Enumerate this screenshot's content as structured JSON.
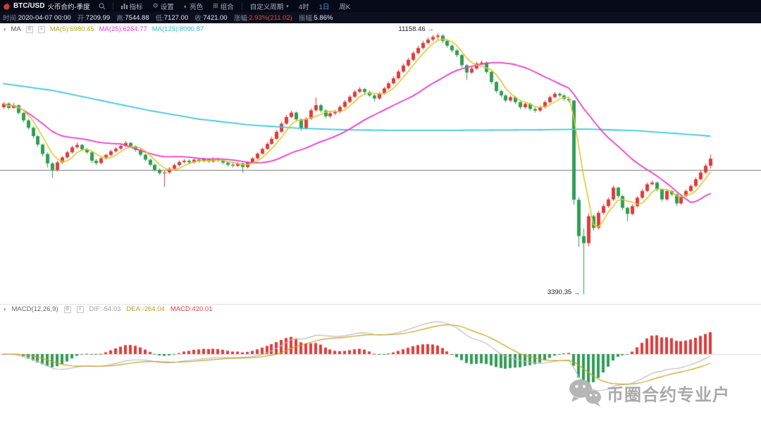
{
  "toolbar": {
    "symbol": "BTC/USD",
    "contract": "火币合约-季度",
    "items": [
      {
        "label": "指标",
        "icon": "indicator-chart-icon"
      },
      {
        "label": "设置",
        "icon": "gear-icon"
      },
      {
        "label": "亮色",
        "icon": "theme-icon"
      },
      {
        "label": "组合",
        "icon": "layout-icon"
      },
      {
        "label": "自定义周期",
        "icon_after": "chevron-down-icon"
      },
      {
        "label": "4时"
      },
      {
        "label": "1日",
        "active": true
      },
      {
        "label": "周K"
      }
    ]
  },
  "info_bar": {
    "time": {
      "label": "时间:",
      "value": "2020-04-07 00:00"
    },
    "open": {
      "label": "开:",
      "value": "7209.99"
    },
    "high": {
      "label": "高:",
      "value": "7544.88"
    },
    "low": {
      "label": "低:",
      "value": "7127.00"
    },
    "close": {
      "label": "收:",
      "value": "7421.00"
    },
    "change": {
      "label": "涨幅:",
      "value": "2.93%(211.02)"
    },
    "amplitude": {
      "label": "振幅:",
      "value": "5.86%"
    }
  },
  "ma_legend": {
    "title": "MA",
    "ma5": "MA(5):6980.45",
    "ma25": "MA(25):6264.77",
    "ma125": "MA(125):8090.87"
  },
  "macd_legend": {
    "title": "MACD(12,26,9)",
    "dif": "DIF:-54.03",
    "dea": "DEA:-264.04",
    "macd": "MACD:420.01"
  },
  "annotations": {
    "high": {
      "text": "11158.46",
      "index": 89,
      "price": 11158.46
    },
    "low": {
      "text": "3390.35",
      "index": 119,
      "price": 3390.35
    }
  },
  "watermark": {
    "text": "币圈合约专业户"
  },
  "icons": {
    "caret_down": "▾",
    "gear": "⚙",
    "theme": "◐",
    "layout": "⊞",
    "close": "×",
    "arrow_right": "→"
  },
  "colors": {
    "up": "#e03b3b",
    "down": "#2f9e55",
    "ma5": "#dcc829",
    "ma25": "#e83bcf",
    "ma125": "#3ec6e0",
    "dif": "#bbbbbb",
    "dea": "#c9a11b",
    "macd_pos": "#e03b3b",
    "macd_neg": "#2f9e55",
    "price_line": "#444444",
    "zero_line": "#d8d8d8",
    "accent_blue": "#4a8fe2"
  },
  "chart_data": {
    "type": "candlestick",
    "symbol": "BTC/USD",
    "timeframe": "1日",
    "panels": [
      "price",
      "macd"
    ],
    "ma_periods": [
      5,
      25,
      125
    ],
    "macd_params": [
      12,
      26,
      9
    ],
    "price_line": 7095,
    "candles": [
      [
        8950,
        9100,
        8900,
        9060
      ],
      [
        9060,
        9090,
        8880,
        8930
      ],
      [
        8930,
        9080,
        8900,
        9010
      ],
      [
        9010,
        9030,
        8740,
        8780
      ],
      [
        8780,
        8800,
        8500,
        8560
      ],
      [
        8560,
        8600,
        8280,
        8340
      ],
      [
        8340,
        8380,
        8020,
        8090
      ],
      [
        8090,
        8120,
        7780,
        7840
      ],
      [
        7840,
        7870,
        7480,
        7560
      ],
      [
        7560,
        7600,
        7160,
        7280
      ],
      [
        7280,
        7320,
        6850,
        7090
      ],
      [
        7090,
        7360,
        7040,
        7310
      ],
      [
        7310,
        7500,
        7260,
        7460
      ],
      [
        7460,
        7660,
        7420,
        7610
      ],
      [
        7610,
        7800,
        7570,
        7760
      ],
      [
        7760,
        7900,
        7720,
        7830
      ],
      [
        7830,
        7860,
        7650,
        7700
      ],
      [
        7700,
        7740,
        7560,
        7610
      ],
      [
        7610,
        7640,
        7300,
        7360
      ],
      [
        7360,
        7420,
        7230,
        7290
      ],
      [
        7290,
        7470,
        7250,
        7430
      ],
      [
        7430,
        7570,
        7390,
        7530
      ],
      [
        7530,
        7690,
        7490,
        7640
      ],
      [
        7640,
        7770,
        7600,
        7720
      ],
      [
        7720,
        7850,
        7680,
        7800
      ],
      [
        7800,
        7950,
        7760,
        7890
      ],
      [
        7890,
        7920,
        7740,
        7790
      ],
      [
        7790,
        7820,
        7630,
        7680
      ],
      [
        7680,
        7710,
        7490,
        7540
      ],
      [
        7540,
        7570,
        7340,
        7390
      ],
      [
        7390,
        7420,
        7190,
        7240
      ],
      [
        7240,
        7270,
        7040,
        7090
      ],
      [
        7090,
        7130,
        6940,
        6990
      ],
      [
        6990,
        7060,
        6580,
        7010
      ],
      [
        7010,
        7170,
        6970,
        7120
      ],
      [
        7120,
        7280,
        7080,
        7230
      ],
      [
        7230,
        7370,
        7190,
        7320
      ],
      [
        7320,
        7410,
        7280,
        7360
      ],
      [
        7360,
        7400,
        7260,
        7310
      ],
      [
        7310,
        7430,
        7270,
        7390
      ],
      [
        7390,
        7420,
        7300,
        7350
      ],
      [
        7350,
        7450,
        7310,
        7410
      ],
      [
        7410,
        7440,
        7290,
        7340
      ],
      [
        7340,
        7460,
        7300,
        7420
      ],
      [
        7420,
        7450,
        7320,
        7370
      ],
      [
        7370,
        7400,
        7250,
        7300
      ],
      [
        7300,
        7330,
        7190,
        7240
      ],
      [
        7240,
        7290,
        7160,
        7210
      ],
      [
        7210,
        7320,
        7170,
        7280
      ],
      [
        7280,
        7300,
        7000,
        7170
      ],
      [
        7170,
        7350,
        7130,
        7310
      ],
      [
        7310,
        7470,
        7280,
        7430
      ],
      [
        7430,
        7620,
        7400,
        7570
      ],
      [
        7570,
        7760,
        7540,
        7710
      ],
      [
        7710,
        7910,
        7680,
        7860
      ],
      [
        7860,
        8070,
        7830,
        8010
      ],
      [
        8010,
        8280,
        7980,
        8220
      ],
      [
        8220,
        8520,
        8190,
        8460
      ],
      [
        8460,
        8720,
        8430,
        8660
      ],
      [
        8660,
        8850,
        8620,
        8790
      ],
      [
        8790,
        8820,
        8530,
        8590
      ],
      [
        8590,
        8620,
        8250,
        8310
      ],
      [
        8310,
        8660,
        8280,
        8610
      ],
      [
        8610,
        8920,
        8570,
        8860
      ],
      [
        8860,
        9240,
        8820,
        9010
      ],
      [
        9010,
        9050,
        8790,
        8850
      ],
      [
        8850,
        8890,
        8620,
        8680
      ],
      [
        8680,
        8820,
        8630,
        8770
      ],
      [
        8770,
        8870,
        8720,
        8810
      ],
      [
        8810,
        9010,
        8770,
        8960
      ],
      [
        8960,
        9160,
        8920,
        9110
      ],
      [
        9110,
        9310,
        9070,
        9260
      ],
      [
        9260,
        9460,
        9220,
        9410
      ],
      [
        9410,
        9550,
        9370,
        9490
      ],
      [
        9490,
        9530,
        9350,
        9400
      ],
      [
        9400,
        9440,
        9250,
        9300
      ],
      [
        9300,
        9340,
        9120,
        9210
      ],
      [
        9210,
        9400,
        9170,
        9360
      ],
      [
        9360,
        9560,
        9320,
        9510
      ],
      [
        9510,
        9710,
        9470,
        9660
      ],
      [
        9660,
        9870,
        9620,
        9810
      ],
      [
        9810,
        10070,
        9770,
        10010
      ],
      [
        10010,
        10250,
        9970,
        10190
      ],
      [
        10190,
        10420,
        10150,
        10360
      ],
      [
        10360,
        10620,
        10320,
        10560
      ],
      [
        10560,
        10780,
        10520,
        10710
      ],
      [
        10710,
        10930,
        10670,
        10860
      ],
      [
        10860,
        11030,
        10820,
        10960
      ],
      [
        10960,
        11100,
        10900,
        11040
      ],
      [
        11040,
        11158,
        10960,
        11080
      ],
      [
        11080,
        11120,
        10860,
        10920
      ],
      [
        10920,
        10960,
        10720,
        10780
      ],
      [
        10780,
        10820,
        10580,
        10640
      ],
      [
        10640,
        10680,
        10440,
        10500
      ],
      [
        10500,
        10530,
        10130,
        10200
      ],
      [
        10200,
        10230,
        9760,
        9980
      ],
      [
        9980,
        10150,
        9940,
        10100
      ],
      [
        10100,
        10300,
        10060,
        10250
      ],
      [
        10250,
        10340,
        10210,
        10280
      ],
      [
        10280,
        10310,
        9940,
        10000
      ],
      [
        10000,
        10030,
        9640,
        9700
      ],
      [
        9700,
        9730,
        9370,
        9430
      ],
      [
        9430,
        9470,
        9240,
        9300
      ],
      [
        9300,
        9340,
        9090,
        9150
      ],
      [
        9150,
        9300,
        9100,
        9250
      ],
      [
        9250,
        9280,
        9040,
        9100
      ],
      [
        9100,
        9130,
        8890,
        8950
      ],
      [
        8950,
        9100,
        8900,
        9050
      ],
      [
        9050,
        9080,
        8840,
        8900
      ],
      [
        8900,
        8940,
        8790,
        8850
      ],
      [
        8850,
        9000,
        8810,
        8950
      ],
      [
        8950,
        9150,
        8910,
        9100
      ],
      [
        9100,
        9300,
        9060,
        9250
      ],
      [
        9250,
        9410,
        9210,
        9350
      ],
      [
        9350,
        9390,
        9250,
        9300
      ],
      [
        9300,
        9340,
        9140,
        9200
      ],
      [
        9200,
        9250,
        9090,
        9150
      ],
      [
        9150,
        9170,
        6050,
        6200
      ],
      [
        6200,
        6280,
        4800,
        5120
      ],
      [
        5120,
        5350,
        3390,
        4910
      ],
      [
        4910,
        5800,
        4820,
        5710
      ],
      [
        5710,
        5760,
        5280,
        5360
      ],
      [
        5360,
        5870,
        5310,
        5810
      ],
      [
        5810,
        6080,
        5760,
        6010
      ],
      [
        6010,
        6270,
        5960,
        6210
      ],
      [
        6210,
        6620,
        6160,
        6560
      ],
      [
        6560,
        6590,
        6250,
        6310
      ],
      [
        6310,
        6340,
        5890,
        5960
      ],
      [
        5960,
        5990,
        5560,
        5780
      ],
      [
        5780,
        6060,
        5740,
        6010
      ],
      [
        6010,
        6310,
        5970,
        6260
      ],
      [
        6260,
        6520,
        6220,
        6460
      ],
      [
        6460,
        6710,
        6420,
        6660
      ],
      [
        6660,
        6780,
        6620,
        6710
      ],
      [
        6710,
        6740,
        6450,
        6510
      ],
      [
        6510,
        6540,
        6150,
        6210
      ],
      [
        6210,
        6500,
        6170,
        6460
      ],
      [
        6460,
        6490,
        6300,
        6360
      ],
      [
        6360,
        6390,
        6020,
        6090
      ],
      [
        6090,
        6360,
        6050,
        6310
      ],
      [
        6310,
        6510,
        6270,
        6460
      ],
      [
        6460,
        6660,
        6420,
        6610
      ],
      [
        6610,
        6870,
        6570,
        6810
      ],
      [
        6810,
        7070,
        6770,
        7010
      ],
      [
        7010,
        7270,
        6970,
        7210
      ],
      [
        7209.99,
        7544.88,
        7127.0,
        7421.0
      ]
    ],
    "ma125_points": [
      [
        0,
        9650
      ],
      [
        10,
        9450
      ],
      [
        20,
        9150
      ],
      [
        30,
        8850
      ],
      [
        40,
        8600
      ],
      [
        50,
        8430
      ],
      [
        60,
        8330
      ],
      [
        70,
        8280
      ],
      [
        80,
        8260
      ],
      [
        90,
        8260
      ],
      [
        100,
        8270
      ],
      [
        110,
        8280
      ],
      [
        120,
        8300
      ],
      [
        130,
        8250
      ],
      [
        138,
        8170
      ],
      [
        145,
        8091
      ]
    ]
  }
}
